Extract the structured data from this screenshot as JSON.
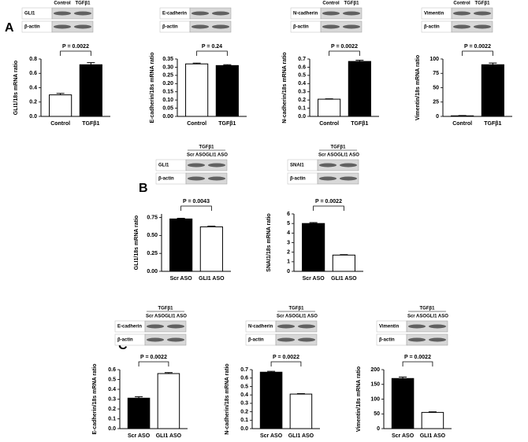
{
  "panel_labels": [
    "A",
    "B",
    "C"
  ],
  "chart_data": [
    {
      "type": "bar",
      "ylabel": "GLI1/18s mRNA ratio",
      "categories": [
        "Control",
        "TGFβ1"
      ],
      "values": [
        0.3,
        0.72
      ],
      "errors": [
        0.02,
        0.03
      ],
      "colors": [
        "#ffffff",
        "#000000"
      ],
      "ylim": [
        0,
        0.8
      ],
      "yticks": [
        {
          "value": 0,
          "label": "0.0"
        },
        0.2,
        0.4,
        0.6,
        0.8
      ],
      "annotation": "P = 0.0022",
      "blot": {
        "lanes": [
          "Control",
          "TGFβ1"
        ],
        "rows": [
          "GLI1",
          "β-actin"
        ]
      }
    },
    {
      "type": "bar",
      "ylabel": "E-cadherin/18s mRNA ratio",
      "categories": [
        "Control",
        "TGFβ1"
      ],
      "values": [
        0.32,
        0.31
      ],
      "errors": [
        0.005,
        0.005
      ],
      "colors": [
        "#ffffff",
        "#000000"
      ],
      "ylim": [
        0,
        0.35
      ],
      "yticks": [
        {
          "value": 0,
          "label": "0.00"
        },
        0.05,
        {
          "value": 0.1,
          "label": "0.10"
        },
        0.15,
        {
          "value": 0.2,
          "label": "0.20"
        },
        0.25,
        {
          "value": 0.3,
          "label": "0.30"
        },
        0.35
      ],
      "annotation": "P = 0.24",
      "blot": {
        "rows": [
          "E-cadherin",
          "β-actin"
        ]
      }
    },
    {
      "type": "bar",
      "ylabel": "N-cadherin/18s mRNA ratio",
      "categories": [
        "Control",
        "TGFβ1"
      ],
      "values": [
        0.21,
        0.67
      ],
      "errors": [
        0.005,
        0.015
      ],
      "colors": [
        "#ffffff",
        "#000000"
      ],
      "ylim": [
        0,
        0.7
      ],
      "yticks": [
        {
          "value": 0,
          "label": "0.0"
        },
        0.1,
        0.2,
        0.3,
        0.4,
        0.5,
        0.6,
        0.7
      ],
      "annotation": "P = 0.0022",
      "blot": {
        "lanes": [
          "Control",
          "TGFβ1"
        ],
        "rows": [
          "N-cadherin",
          "β-actin"
        ]
      }
    },
    {
      "type": "bar",
      "ylabel": "Vimentin/18s mRNA ratio",
      "categories": [
        "Control",
        "TGFβ1"
      ],
      "values": [
        1,
        90
      ],
      "errors": [
        0.5,
        3
      ],
      "colors": [
        "#ffffff",
        "#000000"
      ],
      "ylim": [
        0,
        100
      ],
      "yticks": [
        0,
        25,
        50,
        75,
        100
      ],
      "annotation": "P = 0.0022",
      "blot": {
        "lanes": [
          "Control",
          "TGFβ1"
        ],
        "rows": [
          "Vimentin",
          "β-actin"
        ]
      }
    },
    {
      "type": "bar",
      "ylabel": "GLI1/18s mRNA ratio",
      "categories": [
        "Scr ASO",
        "GLI1 ASO"
      ],
      "values": [
        0.73,
        0.62
      ],
      "errors": [
        0.01,
        0.01
      ],
      "colors": [
        "#000000",
        "#ffffff"
      ],
      "ylim": [
        0,
        0.8
      ],
      "yticks": [
        {
          "value": 0,
          "label": "0.00"
        },
        0.25,
        {
          "value": 0.5,
          "label": "0.50"
        },
        0.75
      ],
      "annotation": "P = 0.0043",
      "blot": {
        "header": "TGFβ1",
        "lanes": [
          "Scr ASO",
          "GLI1 ASO"
        ],
        "rows": [
          "GLI1",
          "β-actin"
        ]
      }
    },
    {
      "type": "bar",
      "ylabel": "SNAI1/18s mRNA ratio",
      "categories": [
        "Scr ASO",
        "GLI1 ASO"
      ],
      "values": [
        5.0,
        1.7
      ],
      "errors": [
        0.1,
        0.05
      ],
      "colors": [
        "#000000",
        "#ffffff"
      ],
      "ylim": [
        0,
        6
      ],
      "yticks": [
        0,
        1,
        2,
        3,
        4,
        5,
        6
      ],
      "annotation": "P = 0.0022",
      "blot": {
        "header": "TGFβ1",
        "lanes": [
          "Scr ASO",
          "GLI1 ASO"
        ],
        "rows": [
          "SNAI1",
          "β-actin"
        ]
      }
    },
    {
      "type": "bar",
      "ylabel": "E-cadherin/18s mRNA ratio",
      "categories": [
        "Scr ASO",
        "GLI1 ASO"
      ],
      "values": [
        0.31,
        0.56
      ],
      "errors": [
        0.015,
        0.01
      ],
      "colors": [
        "#000000",
        "#ffffff"
      ],
      "ylim": [
        0,
        0.6
      ],
      "yticks": [
        {
          "value": 0,
          "label": "0.0"
        },
        0.1,
        0.2,
        0.3,
        0.4,
        0.5,
        0.6
      ],
      "annotation": "P = 0.0022",
      "blot": {
        "header": "TGFβ1",
        "lanes": [
          "Scr ASO",
          "GLI1 ASO"
        ],
        "rows": [
          "E-cadherin",
          "β-actin"
        ]
      }
    },
    {
      "type": "bar",
      "ylabel": "N-cadherin/18s mRNA ratio",
      "categories": [
        "Scr ASO",
        "GLI1 ASO"
      ],
      "values": [
        0.67,
        0.41
      ],
      "errors": [
        0.01,
        0.005
      ],
      "colors": [
        "#000000",
        "#ffffff"
      ],
      "ylim": [
        0,
        0.7
      ],
      "yticks": [
        {
          "value": 0,
          "label": "0.0"
        },
        0.1,
        0.2,
        0.3,
        0.4,
        0.5,
        0.6,
        0.7
      ],
      "annotation": "P = 0.0022",
      "blot": {
        "header": "TGFβ1",
        "lanes": [
          "Scr ASO",
          "GLI1 ASO"
        ],
        "rows": [
          "N-cadherin",
          "β-actin"
        ]
      }
    },
    {
      "type": "bar",
      "ylabel": "Vimentin/18s mRNA ratio",
      "categories": [
        "Scr ASO",
        "GLI1 ASO"
      ],
      "values": [
        170,
        55
      ],
      "errors": [
        5,
        2
      ],
      "colors": [
        "#000000",
        "#ffffff"
      ],
      "ylim": [
        0,
        200
      ],
      "yticks": [
        0,
        50,
        100,
        150,
        200
      ],
      "annotation": "P = 0.0022",
      "blot": {
        "header": "TGFβ1",
        "lanes": [
          "Scr ASO",
          "GLI1 ASO"
        ],
        "rows": [
          "Vimentin",
          "β-actin"
        ]
      }
    }
  ]
}
